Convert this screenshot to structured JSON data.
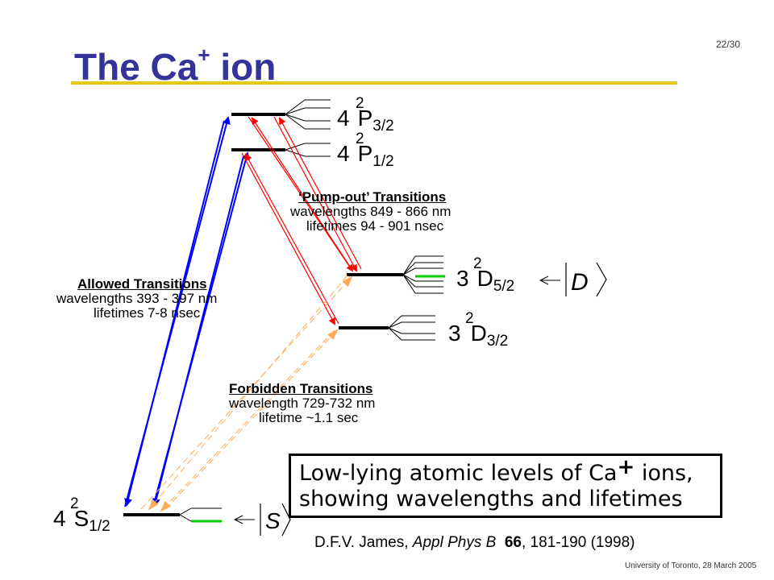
{
  "slide": {
    "title_main": "The Ca",
    "title_sup": "+",
    "title_end": " ion",
    "page_number": "22/30",
    "footer": "University of Toronto, 28 March 2005"
  },
  "levels": {
    "p32": {
      "n": "4",
      "mult": "2",
      "l": "P",
      "j": "3/2"
    },
    "p12": {
      "n": "4",
      "mult": "2",
      "l": "P",
      "j": "1/2"
    },
    "d52": {
      "n": "3",
      "mult": "2",
      "l": "D",
      "j": "5/2"
    },
    "d32": {
      "n": "3",
      "mult": "2",
      "l": "D",
      "j": "3/2"
    },
    "s12": {
      "n": "4",
      "mult": "2",
      "l": "S",
      "j": "1/2"
    }
  },
  "kets": {
    "d": {
      "label": "D"
    },
    "s": {
      "label": "S"
    }
  },
  "transitions": {
    "pumpout": {
      "heading": "‘Pump-out’ Transitions",
      "line1": "wavelengths 849 - 866 nm",
      "line2": "lifetimes 94 - 901 nsec"
    },
    "allowed": {
      "heading": "Allowed Transitions",
      "line1": "wavelengths 393 - 397 nm",
      "line2": "lifetimes 7-8 nsec"
    },
    "forbidden": {
      "heading": "Forbidden Transitions",
      "line1": "wavelength 729-732 nm",
      "line2": "lifetime ~1.1 sec"
    }
  },
  "caption": {
    "line1": "Low-lying atomic levels of Ca",
    "line1_sup": "+",
    "line1_end": " ions,",
    "line2": "showing wavelengths and lifetimes"
  },
  "citation": {
    "authors": "D.F.V. James, ",
    "journal": "Appl Phys B",
    "volume": "66",
    "pages": ", 181-190 (1998)"
  },
  "colors": {
    "title": "#333399",
    "rule": "#e8c61a",
    "allowed_arrow": "#0000ff",
    "pumpout_arrow": "#ff0000",
    "forbidden_arrow": "#ffaa55",
    "qubit_line": "#00cc00"
  }
}
